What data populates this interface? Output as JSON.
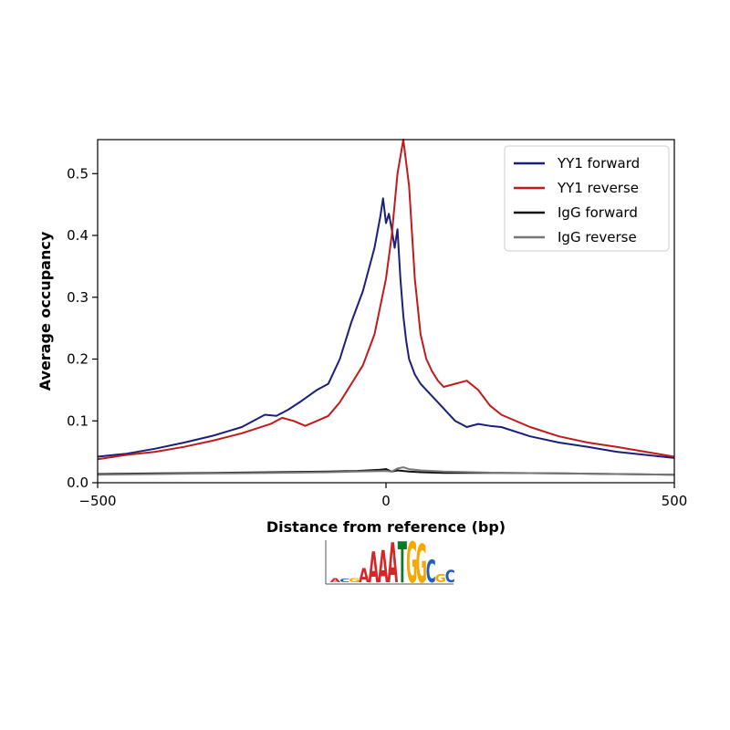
{
  "chart_data": {
    "type": "line",
    "title": "",
    "xlabel": "Distance from reference (bp)",
    "ylabel": "Average occupancy",
    "xlim": [
      -500,
      500
    ],
    "ylim": [
      0,
      0.555
    ],
    "xticks": [
      -500,
      0,
      500
    ],
    "xtick_labels": [
      "−500",
      "0",
      "500"
    ],
    "yticks": [
      0.0,
      0.1,
      0.2,
      0.3,
      0.4,
      0.5
    ],
    "ytick_labels": [
      "0.0",
      "0.1",
      "0.2",
      "0.3",
      "0.4",
      "0.5"
    ],
    "grid": false,
    "legend_position": "top-right",
    "series": [
      {
        "name": "YY1 forward",
        "color": "#1a1f7a",
        "x": [
          -500,
          -450,
          -400,
          -350,
          -300,
          -250,
          -210,
          -190,
          -170,
          -150,
          -120,
          -100,
          -80,
          -60,
          -40,
          -20,
          -10,
          -5,
          0,
          5,
          10,
          15,
          20,
          25,
          30,
          35,
          40,
          50,
          60,
          70,
          80,
          100,
          120,
          140,
          160,
          180,
          200,
          250,
          300,
          350,
          400,
          450,
          500
        ],
        "y": [
          0.042,
          0.047,
          0.055,
          0.065,
          0.076,
          0.09,
          0.11,
          0.108,
          0.118,
          0.13,
          0.15,
          0.16,
          0.2,
          0.26,
          0.31,
          0.38,
          0.43,
          0.46,
          0.42,
          0.435,
          0.41,
          0.38,
          0.41,
          0.33,
          0.27,
          0.23,
          0.2,
          0.175,
          0.16,
          0.15,
          0.14,
          0.12,
          0.1,
          0.09,
          0.095,
          0.092,
          0.09,
          0.075,
          0.065,
          0.058,
          0.05,
          0.045,
          0.04
        ]
      },
      {
        "name": "YY1 reverse",
        "color": "#c01a1a",
        "x": [
          -500,
          -450,
          -400,
          -350,
          -300,
          -250,
          -200,
          -180,
          -160,
          -140,
          -120,
          -100,
          -80,
          -60,
          -40,
          -20,
          0,
          10,
          20,
          30,
          40,
          50,
          60,
          70,
          80,
          90,
          100,
          120,
          140,
          160,
          180,
          200,
          250,
          300,
          350,
          400,
          450,
          500
        ],
        "y": [
          0.038,
          0.045,
          0.05,
          0.058,
          0.068,
          0.08,
          0.095,
          0.105,
          0.1,
          0.092,
          0.1,
          0.108,
          0.13,
          0.16,
          0.19,
          0.24,
          0.33,
          0.4,
          0.5,
          0.555,
          0.48,
          0.33,
          0.24,
          0.2,
          0.18,
          0.165,
          0.155,
          0.16,
          0.165,
          0.15,
          0.125,
          0.11,
          0.09,
          0.075,
          0.065,
          0.058,
          0.05,
          0.042
        ]
      },
      {
        "name": "IgG forward",
        "color": "#111111",
        "x": [
          -500,
          -400,
          -300,
          -200,
          -100,
          -50,
          -10,
          0,
          10,
          20,
          40,
          60,
          100,
          200,
          300,
          400,
          500
        ],
        "y": [
          0.014,
          0.015,
          0.016,
          0.017,
          0.018,
          0.019,
          0.021,
          0.022,
          0.018,
          0.02,
          0.018,
          0.017,
          0.016,
          0.016,
          0.015,
          0.014,
          0.013
        ]
      },
      {
        "name": "IgG reverse",
        "color": "#777777",
        "x": [
          -500,
          -400,
          -300,
          -200,
          -100,
          -50,
          0,
          10,
          20,
          30,
          40,
          60,
          100,
          200,
          300,
          400,
          500
        ],
        "y": [
          0.013,
          0.014,
          0.015,
          0.016,
          0.017,
          0.018,
          0.019,
          0.018,
          0.023,
          0.025,
          0.022,
          0.02,
          0.018,
          0.016,
          0.015,
          0.014,
          0.013
        ]
      }
    ]
  },
  "motif_logo": {
    "letters": [
      {
        "char": "A",
        "color": "#d62728",
        "h": 0.1
      },
      {
        "char": "C",
        "color": "#1f5fbf",
        "h": 0.08
      },
      {
        "char": "G",
        "color": "#f5a800",
        "h": 0.1
      },
      {
        "char": "A",
        "color": "#d62728",
        "h": 0.35
      },
      {
        "char": "A",
        "color": "#d62728",
        "h": 0.75
      },
      {
        "char": "A",
        "color": "#d62728",
        "h": 0.78
      },
      {
        "char": "A",
        "color": "#d62728",
        "h": 0.98
      },
      {
        "char": "T",
        "color": "#0a7a2a",
        "h": 1.0
      },
      {
        "char": "G",
        "color": "#f5a800",
        "h": 1.0
      },
      {
        "char": "G",
        "color": "#f5a800",
        "h": 0.95
      },
      {
        "char": "C",
        "color": "#1f5fbf",
        "h": 0.55
      },
      {
        "char": "G",
        "color": "#f5a800",
        "h": 0.2
      },
      {
        "char": "C",
        "color": "#1f5fbf",
        "h": 0.3
      }
    ]
  }
}
